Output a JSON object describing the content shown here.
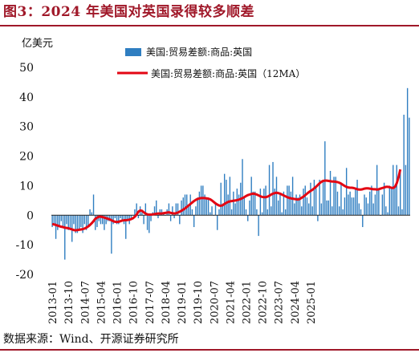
{
  "figure": {
    "title": "图3：2024 年美国对英国录得较多顺差",
    "source": "数据来源：Wind、开源证券研究所"
  },
  "chart_data": {
    "type": "bar",
    "unit": "亿美元",
    "ylim": [
      -20,
      50
    ],
    "yticks": [
      -20,
      -10,
      0,
      10,
      20,
      30,
      40,
      50
    ],
    "x_start": "2013-01",
    "xtick_labels": [
      "2013-01",
      "2013-10",
      "2014-07",
      "2015-04",
      "2016-01",
      "2016-10",
      "2017-07",
      "2018-04",
      "2019-01",
      "2019-10",
      "2020-07",
      "2021-04",
      "2022-01",
      "2022-10",
      "2023-07",
      "2024-04",
      "2025-01"
    ],
    "legend_position": "top-right",
    "colors": {
      "bar": "#2f7ec1",
      "line": "#e30613"
    },
    "series": [
      {
        "name": "美国:贸易差额:商品:英国",
        "type": "bar",
        "values": [
          -4,
          -3,
          -8,
          -5,
          -4,
          -2,
          -4,
          -15,
          -3,
          -5,
          -5,
          -9,
          -3,
          -6,
          -6,
          -5,
          -4,
          -6,
          -3,
          -5,
          -4,
          2,
          1,
          7,
          -5,
          -4,
          -2,
          -3,
          -3,
          -5,
          -3,
          -2,
          -2,
          -13,
          -3,
          -1,
          -3,
          -3,
          -1,
          -2,
          -3,
          -8,
          -2,
          -3,
          -1,
          0,
          2,
          4,
          -1,
          3,
          1,
          -3,
          4,
          -5,
          -6,
          -2,
          1,
          3,
          5,
          -1,
          2,
          2,
          1,
          0,
          2,
          4,
          -2,
          3,
          -1,
          4,
          4,
          -3,
          5,
          6,
          7,
          7,
          3,
          7,
          2,
          -4,
          3,
          6,
          8,
          10,
          10,
          7,
          6,
          6,
          1,
          3,
          0,
          4,
          -5,
          2,
          11,
          4,
          14,
          12,
          7,
          13,
          2,
          8,
          4,
          9,
          7,
          11,
          19,
          6,
          2,
          -2,
          5,
          13,
          8,
          8,
          2,
          -7,
          9,
          1,
          9,
          10,
          2,
          17,
          3,
          18,
          9,
          13,
          5,
          7,
          1,
          8,
          2,
          10,
          10,
          8,
          13,
          4,
          7,
          6,
          7,
          3,
          9,
          10,
          6,
          4,
          11,
          3,
          12,
          10,
          -2,
          12,
          4,
          12,
          25,
          5,
          5,
          15,
          3,
          13,
          13,
          8,
          3,
          11,
          2,
          6,
          16,
          7,
          8,
          6,
          6,
          9,
          12,
          4,
          2,
          -4,
          7,
          6,
          4,
          8,
          10,
          4,
          7,
          17,
          9,
          0,
          7,
          11,
          3,
          1,
          10,
          9,
          17,
          10,
          17,
          3,
          15,
          2,
          34,
          17,
          43,
          33
        ]
      },
      {
        "name": "美国:贸易差额:商品:英国（12MA）",
        "type": "line",
        "values": [
          -3.0,
          -3.1,
          -3.3,
          -3.5,
          -3.7,
          -3.9,
          -4.0,
          -4.2,
          -4.3,
          -4.4,
          -4.6,
          -4.8,
          -5.0,
          -5.1,
          -5.0,
          -4.9,
          -4.8,
          -4.7,
          -4.5,
          -4.2,
          -3.8,
          -3.3,
          -2.7,
          -2.0,
          -1.2,
          -0.8,
          -0.5,
          -0.5,
          -0.6,
          -0.8,
          -1.0,
          -1.2,
          -1.4,
          -1.7,
          -2.0,
          -2.2,
          -2.3,
          -2.2,
          -2.0,
          -1.8,
          -1.7,
          -1.7,
          -1.6,
          -1.5,
          -1.3,
          -1.0,
          -0.5,
          0.2,
          1.2,
          1.6,
          1.5,
          1.0,
          0.6,
          0.3,
          0.2,
          0.2,
          0.3,
          0.4,
          0.5,
          0.6,
          0.6,
          0.6,
          0.7,
          0.8,
          0.9,
          1.0,
          0.8,
          0.7,
          0.6,
          0.7,
          0.9,
          1.2,
          1.5,
          1.9,
          2.3,
          2.8,
          3.3,
          3.8,
          4.3,
          4.8,
          5.2,
          5.5,
          5.7,
          5.8,
          5.8,
          5.8,
          5.7,
          5.6,
          5.4,
          5.0,
          4.5,
          4.0,
          3.6,
          3.3,
          3.2,
          3.4,
          3.8,
          4.2,
          4.5,
          4.7,
          4.8,
          4.9,
          5.0,
          5.1,
          5.3,
          5.5,
          5.8,
          6.1,
          6.5,
          6.8,
          7.0,
          7.2,
          7.3,
          7.2,
          7.0,
          6.7,
          6.4,
          6.2,
          6.1,
          6.1,
          6.3,
          6.6,
          7.0,
          7.3,
          7.5,
          7.6,
          7.5,
          7.3,
          7.0,
          6.7,
          6.4,
          6.1,
          5.9,
          5.7,
          5.6,
          5.5,
          5.4,
          5.3,
          5.5,
          5.9,
          6.3,
          6.8,
          7.3,
          7.8,
          8.2,
          8.6,
          9.1,
          9.6,
          10.2,
          10.8,
          11.3,
          11.6,
          11.7,
          11.7,
          11.6,
          11.5,
          11.4,
          11.4,
          11.3,
          11.2,
          11.0,
          10.7,
          10.3,
          9.9,
          9.6,
          9.4,
          9.3,
          9.3,
          9.2,
          9.0,
          8.8,
          8.7,
          8.7,
          8.8,
          9.0,
          9.1,
          9.1,
          9.0,
          8.9,
          8.8,
          8.8,
          8.7,
          8.8,
          9.0,
          9.2,
          9.4,
          9.6,
          9.6,
          9.5,
          9.3,
          9.2,
          9.6,
          10.8,
          12.8,
          15.5
        ]
      }
    ]
  }
}
